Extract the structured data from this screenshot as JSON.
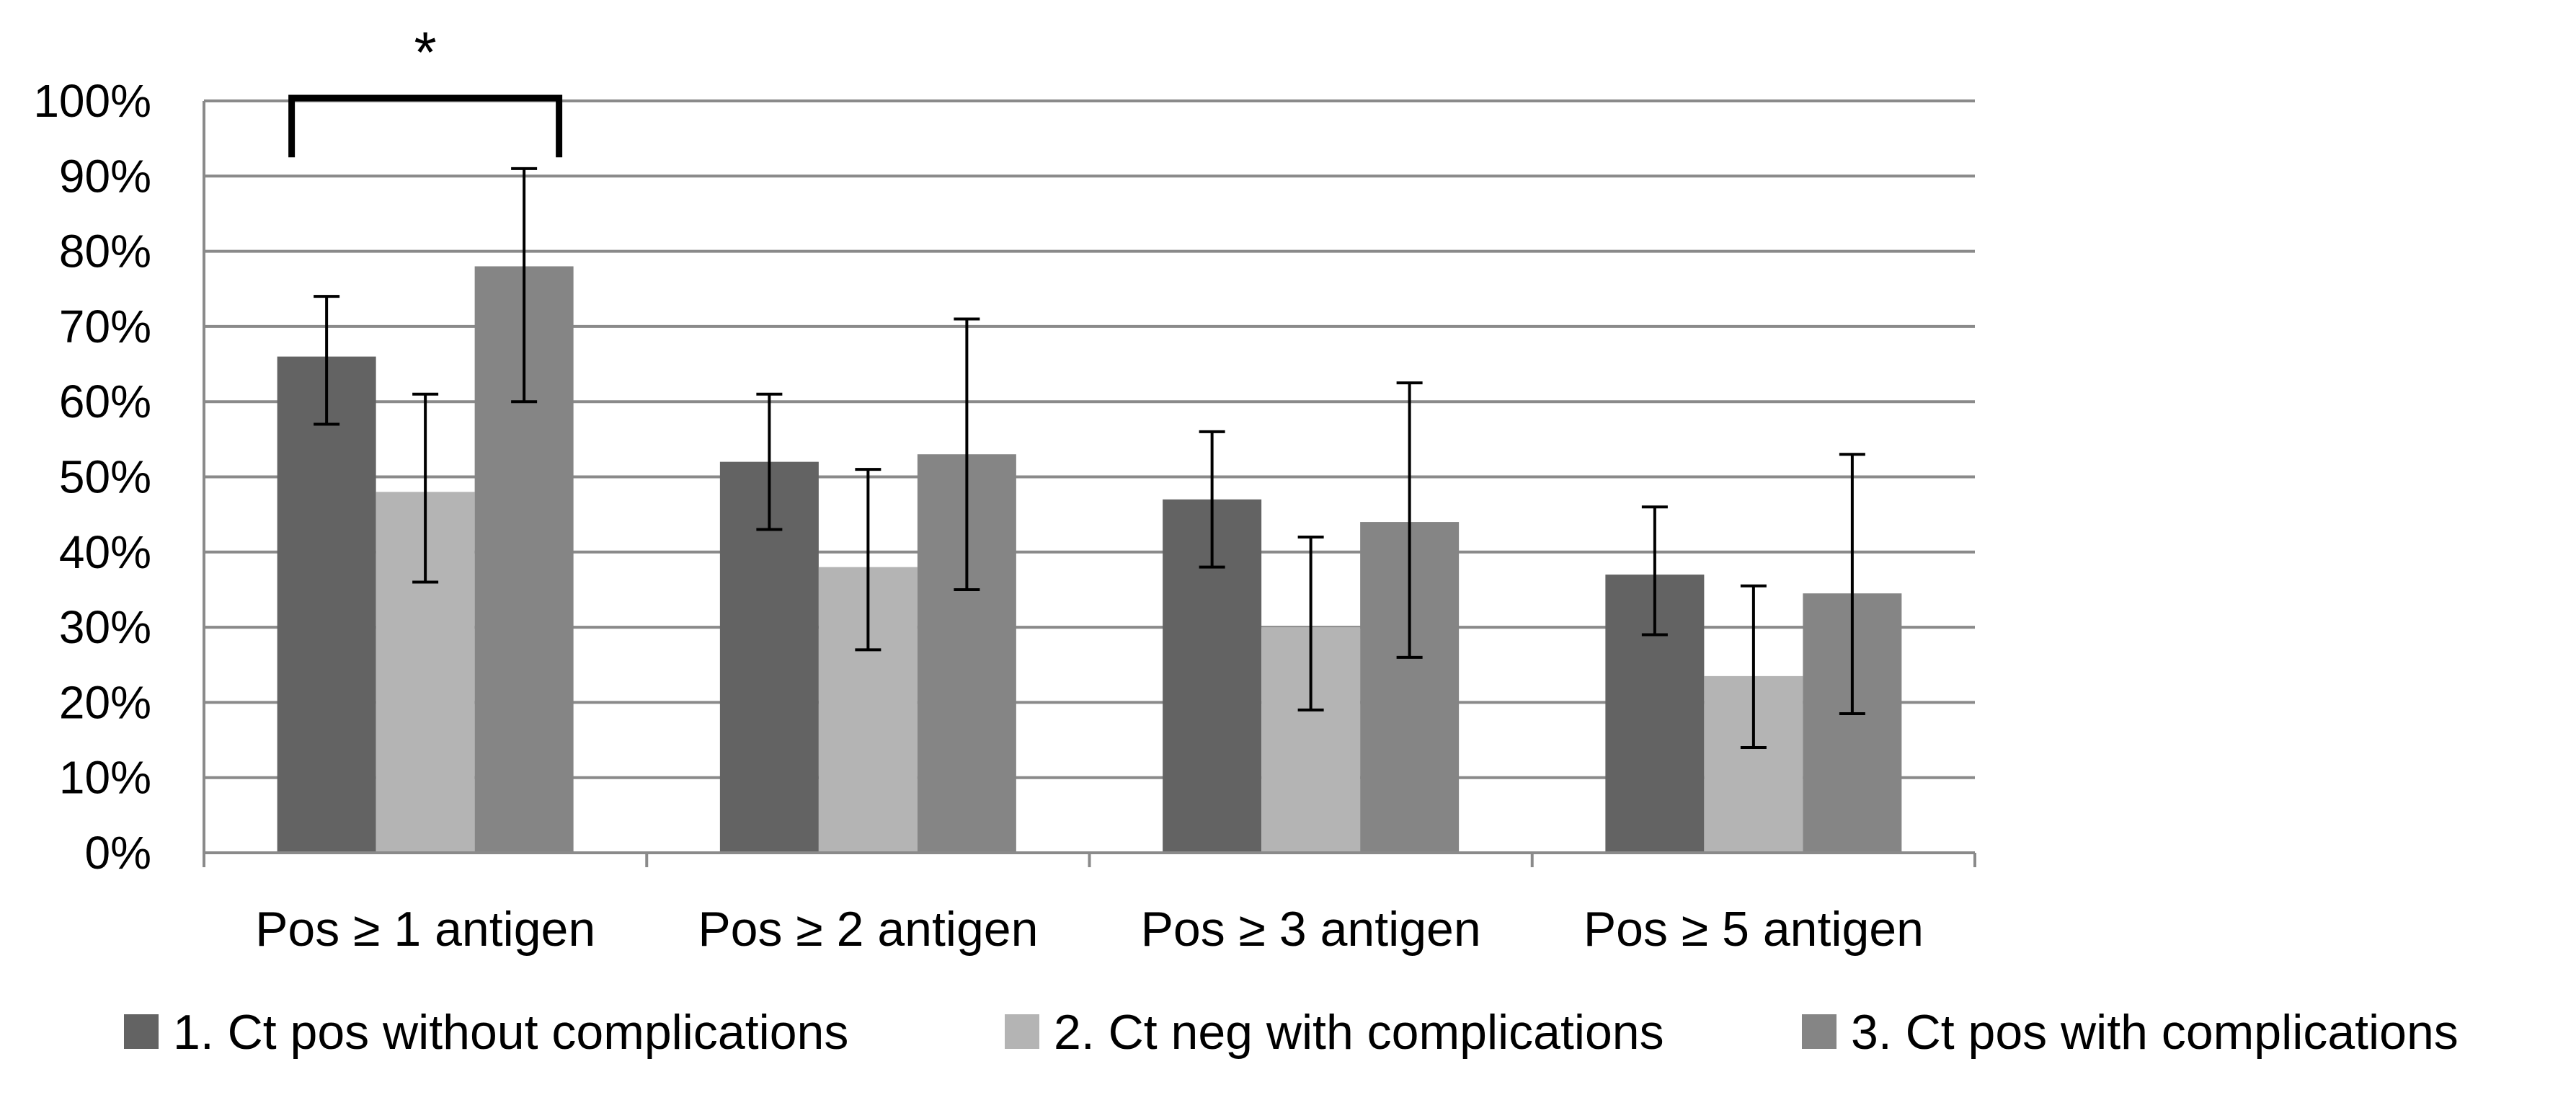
{
  "chart_data": {
    "type": "bar",
    "title": "",
    "xlabel": "",
    "ylabel": "",
    "ylim": [
      0,
      100
    ],
    "y_ticks": [
      "0%",
      "10%",
      "20%",
      "30%",
      "40%",
      "50%",
      "60%",
      "70%",
      "80%",
      "90%",
      "100%"
    ],
    "grid": true,
    "legend_position": "bottom",
    "categories": [
      "Pos ≥ 1 antigen",
      "Pos ≥ 2 antigen",
      "Pos ≥ 3 antigen",
      "Pos ≥ 5 antigen"
    ],
    "series": [
      {
        "name": "1. Ct pos without complications",
        "color": "#636363",
        "values": [
          66,
          52,
          47,
          37
        ],
        "error_low": [
          57,
          43,
          38,
          29
        ],
        "error_high": [
          74,
          61,
          56,
          46
        ]
      },
      {
        "name": "2. Ct neg with complications",
        "color": "#b4b4b4",
        "values": [
          48,
          38,
          30,
          23.5
        ],
        "error_low": [
          36,
          27,
          19,
          14
        ],
        "error_high": [
          61,
          51,
          42,
          35.5
        ]
      },
      {
        "name": "3. Ct pos with complications",
        "color": "#858585",
        "values": [
          78,
          53,
          44,
          34.5
        ],
        "error_low": [
          60,
          35,
          26,
          18.5
        ],
        "error_high": [
          91,
          71,
          62.5,
          53
        ]
      }
    ],
    "annotation": {
      "text": "*",
      "category": "Pos ≥ 1 antigen",
      "from_series": 0,
      "to_series": 2
    }
  }
}
